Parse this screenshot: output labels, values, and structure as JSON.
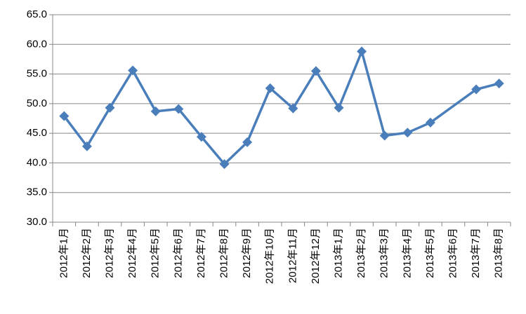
{
  "chart_data": {
    "type": "line",
    "categories": [
      "2012年1月",
      "2012年2月",
      "2012年3月",
      "2012年4月",
      "2012年5月",
      "2012年6月",
      "2012年7月",
      "2012年8月",
      "2012年9月",
      "2012年10月",
      "2012年11月",
      "2012年12月",
      "2013年1月",
      "2013年2月",
      "2013年3月",
      "2013年4月",
      "2013年5月",
      "2013年6月",
      "2013年7月",
      "2013年8月"
    ],
    "series": [
      {
        "color": "#4a7ebb",
        "values": [
          47.9,
          42.8,
          49.3,
          55.6,
          48.7,
          49.1,
          44.4,
          39.8,
          43.5,
          52.6,
          49.2,
          55.5,
          49.3,
          58.8,
          44.6,
          45.1,
          46.8,
          null,
          52.4,
          53.4
        ]
      }
    ],
    "span_gaps": true,
    "ylim": [
      30,
      65
    ],
    "yticks": [
      {
        "value": 30,
        "label": "30.0"
      },
      {
        "value": 35,
        "label": "35.0"
      },
      {
        "value": 40,
        "label": "40.0"
      },
      {
        "value": 45,
        "label": "45.0"
      },
      {
        "value": 50,
        "label": "50.0"
      },
      {
        "value": 55,
        "label": "55.0"
      },
      {
        "value": 60,
        "label": "60.0"
      },
      {
        "value": 65,
        "label": "65.0"
      }
    ],
    "grid": true
  }
}
